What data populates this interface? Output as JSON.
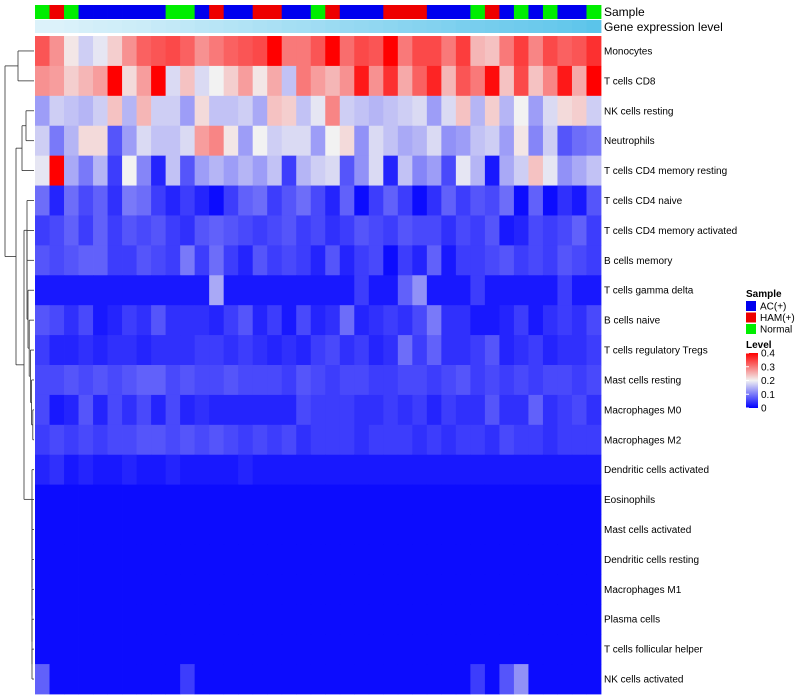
{
  "chart_data": {
    "type": "heatmap",
    "title": "",
    "annotation_titles": [
      "Sample",
      "Gene expression level"
    ],
    "columns": 39,
    "sample_groups": [
      "Normal",
      "HAM(+)",
      "Normal",
      "AC(+)",
      "AC(+)",
      "AC(+)",
      "AC(+)",
      "AC(+)",
      "AC(+)",
      "Normal",
      "Normal",
      "AC(+)",
      "HAM(+)",
      "AC(+)",
      "AC(+)",
      "HAM(+)",
      "HAM(+)",
      "AC(+)",
      "AC(+)",
      "Normal",
      "HAM(+)",
      "AC(+)",
      "AC(+)",
      "AC(+)",
      "HAM(+)",
      "HAM(+)",
      "HAM(+)",
      "AC(+)",
      "AC(+)",
      "AC(+)",
      "Normal",
      "HAM(+)",
      "AC(+)",
      "Normal",
      "AC(+)",
      "Normal",
      "AC(+)",
      "AC(+)",
      "Normal"
    ],
    "gene_expression_level": [
      0.1,
      0.1,
      0.12,
      0.15,
      0.17,
      0.18,
      0.2,
      0.22,
      0.25,
      0.27,
      0.3,
      0.33,
      0.35,
      0.38,
      0.4,
      0.43,
      0.45,
      0.48,
      0.5,
      0.52,
      0.55,
      0.58,
      0.6,
      0.62,
      0.65,
      0.68,
      0.7,
      0.72,
      0.75,
      0.78,
      0.8,
      0.82,
      0.84,
      0.86,
      0.88,
      0.9,
      0.93,
      0.96,
      1.0
    ],
    "rows": [
      {
        "name": "Monocytes",
        "values": [
          0.33,
          0.28,
          0.21,
          0.17,
          0.19,
          0.23,
          0.28,
          0.32,
          0.33,
          0.34,
          0.32,
          0.28,
          0.3,
          0.32,
          0.33,
          0.34,
          0.41,
          0.3,
          0.3,
          0.33,
          0.4,
          0.31,
          0.34,
          0.33,
          0.4,
          0.3,
          0.34,
          0.34,
          0.3,
          0.35,
          0.25,
          0.24,
          0.3,
          0.35,
          0.29,
          0.34,
          0.32,
          0.33,
          0.36
        ]
      },
      {
        "name": "T cells CD8",
        "values": [
          0.28,
          0.27,
          0.23,
          0.25,
          0.27,
          0.4,
          0.22,
          0.27,
          0.4,
          0.18,
          0.24,
          0.18,
          0.2,
          0.23,
          0.27,
          0.21,
          0.26,
          0.16,
          0.3,
          0.27,
          0.25,
          0.28,
          0.38,
          0.28,
          0.36,
          0.26,
          0.32,
          0.37,
          0.25,
          0.33,
          0.3,
          0.39,
          0.24,
          0.34,
          0.24,
          0.29,
          0.38,
          0.26,
          0.4
        ]
      },
      {
        "name": "NK cells resting",
        "values": [
          0.13,
          0.17,
          0.16,
          0.15,
          0.17,
          0.24,
          0.15,
          0.25,
          0.17,
          0.17,
          0.13,
          0.22,
          0.16,
          0.16,
          0.17,
          0.14,
          0.24,
          0.23,
          0.16,
          0.19,
          0.29,
          0.17,
          0.16,
          0.15,
          0.16,
          0.17,
          0.18,
          0.13,
          0.18,
          0.24,
          0.15,
          0.23,
          0.15,
          0.2,
          0.13,
          0.18,
          0.22,
          0.23,
          0.17
        ]
      },
      {
        "name": "Neutrophils",
        "values": [
          0.17,
          0.1,
          0.15,
          0.22,
          0.22,
          0.07,
          0.13,
          0.18,
          0.16,
          0.16,
          0.18,
          0.27,
          0.29,
          0.21,
          0.13,
          0.2,
          0.17,
          0.18,
          0.18,
          0.13,
          0.2,
          0.22,
          0.12,
          0.18,
          0.16,
          0.14,
          0.15,
          0.18,
          0.12,
          0.13,
          0.16,
          0.17,
          0.13,
          0.21,
          0.11,
          0.17,
          0.07,
          0.09,
          0.1
        ]
      },
      {
        "name": "T cells CD4 memory resting",
        "values": [
          0.19,
          0.4,
          0.14,
          0.1,
          0.15,
          0.05,
          0.2,
          0.11,
          0.03,
          0.16,
          0.07,
          0.13,
          0.15,
          0.13,
          0.15,
          0.13,
          0.16,
          0.05,
          0.15,
          0.17,
          0.18,
          0.07,
          0.12,
          0.18,
          0.03,
          0.16,
          0.11,
          0.13,
          0.06,
          0.19,
          0.15,
          0.02,
          0.14,
          0.17,
          0.24,
          0.19,
          0.12,
          0.14,
          0.16
        ]
      },
      {
        "name": "T cells CD4 naive",
        "values": [
          0.09,
          0.03,
          0.09,
          0.06,
          0.08,
          0.04,
          0.1,
          0.09,
          0.05,
          0.03,
          0.05,
          0.03,
          0.01,
          0.05,
          0.08,
          0.09,
          0.05,
          0.07,
          0.09,
          0.06,
          0.03,
          0.08,
          0.01,
          0.05,
          0.08,
          0.05,
          0.01,
          0.04,
          0.08,
          0.05,
          0.07,
          0.06,
          0.09,
          0.01,
          0.08,
          0.01,
          0.04,
          0.02,
          0.07
        ]
      },
      {
        "name": "T cells CD4 memory activated",
        "values": [
          0.05,
          0.06,
          0.08,
          0.05,
          0.08,
          0.05,
          0.07,
          0.06,
          0.07,
          0.05,
          0.04,
          0.07,
          0.08,
          0.07,
          0.06,
          0.05,
          0.06,
          0.07,
          0.05,
          0.06,
          0.04,
          0.05,
          0.07,
          0.06,
          0.05,
          0.07,
          0.06,
          0.06,
          0.04,
          0.06,
          0.05,
          0.07,
          0.02,
          0.03,
          0.06,
          0.05,
          0.06,
          0.08,
          0.05
        ]
      },
      {
        "name": "B cells memory",
        "values": [
          0.07,
          0.06,
          0.07,
          0.08,
          0.08,
          0.05,
          0.05,
          0.07,
          0.06,
          0.05,
          0.1,
          0.05,
          0.09,
          0.05,
          0.03,
          0.07,
          0.05,
          0.06,
          0.05,
          0.03,
          0.07,
          0.03,
          0.05,
          0.06,
          0.01,
          0.05,
          0.03,
          0.08,
          0.02,
          0.05,
          0.05,
          0.06,
          0.07,
          0.05,
          0.06,
          0.05,
          0.07,
          0.06,
          0.05
        ]
      },
      {
        "name": "T cells gamma delta",
        "values": [
          0.02,
          0.02,
          0.02,
          0.02,
          0.02,
          0.02,
          0.02,
          0.02,
          0.02,
          0.02,
          0.02,
          0.02,
          0.14,
          0.02,
          0.02,
          0.02,
          0.02,
          0.02,
          0.02,
          0.02,
          0.02,
          0.02,
          0.05,
          0.02,
          0.02,
          0.08,
          0.12,
          0.02,
          0.02,
          0.02,
          0.05,
          0.02,
          0.02,
          0.02,
          0.02,
          0.02,
          0.05,
          0.02,
          0.02
        ]
      },
      {
        "name": "B cells naive",
        "values": [
          0.07,
          0.06,
          0.04,
          0.06,
          0.02,
          0.03,
          0.05,
          0.04,
          0.07,
          0.04,
          0.04,
          0.04,
          0.03,
          0.05,
          0.07,
          0.03,
          0.05,
          0.02,
          0.06,
          0.03,
          0.04,
          0.09,
          0.03,
          0.04,
          0.05,
          0.04,
          0.06,
          0.1,
          0.04,
          0.04,
          0.02,
          0.02,
          0.03,
          0.05,
          0.02,
          0.04,
          0.05,
          0.04,
          0.06
        ]
      },
      {
        "name": "T cells regulatory  Tregs",
        "values": [
          0.05,
          0.03,
          0.03,
          0.04,
          0.03,
          0.04,
          0.04,
          0.03,
          0.04,
          0.04,
          0.04,
          0.05,
          0.05,
          0.04,
          0.05,
          0.04,
          0.03,
          0.04,
          0.03,
          0.05,
          0.06,
          0.04,
          0.05,
          0.03,
          0.04,
          0.09,
          0.05,
          0.08,
          0.04,
          0.04,
          0.05,
          0.07,
          0.03,
          0.04,
          0.05,
          0.03,
          0.04,
          0.04,
          0.05
        ]
      },
      {
        "name": "Mast cells resting",
        "values": [
          0.06,
          0.06,
          0.07,
          0.06,
          0.07,
          0.06,
          0.07,
          0.08,
          0.08,
          0.06,
          0.07,
          0.06,
          0.06,
          0.07,
          0.06,
          0.06,
          0.06,
          0.05,
          0.07,
          0.06,
          0.05,
          0.06,
          0.06,
          0.05,
          0.05,
          0.06,
          0.06,
          0.05,
          0.06,
          0.07,
          0.05,
          0.06,
          0.05,
          0.06,
          0.05,
          0.06,
          0.06,
          0.05,
          0.06
        ]
      },
      {
        "name": "Macrophages M0",
        "values": [
          0.06,
          0.02,
          0.03,
          0.07,
          0.03,
          0.06,
          0.04,
          0.06,
          0.03,
          0.06,
          0.03,
          0.04,
          0.03,
          0.03,
          0.03,
          0.03,
          0.03,
          0.03,
          0.06,
          0.05,
          0.05,
          0.05,
          0.04,
          0.04,
          0.05,
          0.04,
          0.05,
          0.03,
          0.05,
          0.04,
          0.04,
          0.07,
          0.04,
          0.04,
          0.08,
          0.04,
          0.05,
          0.06,
          0.04
        ]
      },
      {
        "name": "Macrophages M2",
        "values": [
          0.05,
          0.06,
          0.05,
          0.06,
          0.05,
          0.06,
          0.06,
          0.07,
          0.07,
          0.06,
          0.07,
          0.06,
          0.07,
          0.06,
          0.05,
          0.06,
          0.05,
          0.06,
          0.04,
          0.05,
          0.05,
          0.05,
          0.04,
          0.05,
          0.05,
          0.05,
          0.04,
          0.05,
          0.04,
          0.05,
          0.05,
          0.04,
          0.06,
          0.05,
          0.05,
          0.04,
          0.05,
          0.05,
          0.05
        ]
      },
      {
        "name": "Dendritic cells activated",
        "values": [
          0.03,
          0.04,
          0.02,
          0.03,
          0.02,
          0.02,
          0.03,
          0.02,
          0.02,
          0.03,
          0.02,
          0.02,
          0.02,
          0.02,
          0.03,
          0.02,
          0.02,
          0.02,
          0.02,
          0.02,
          0.02,
          0.02,
          0.02,
          0.02,
          0.02,
          0.02,
          0.02,
          0.02,
          0.02,
          0.02,
          0.02,
          0.02,
          0.02,
          0.02,
          0.02,
          0.02,
          0.02,
          0.02,
          0.02
        ]
      },
      {
        "name": "Eosinophils",
        "values": [
          0.01,
          0.01,
          0.01,
          0.01,
          0.01,
          0.01,
          0.01,
          0.01,
          0.01,
          0.01,
          0.01,
          0.01,
          0.01,
          0.01,
          0.01,
          0.01,
          0.01,
          0.01,
          0.01,
          0.01,
          0.01,
          0.01,
          0.01,
          0.01,
          0.01,
          0.01,
          0.01,
          0.01,
          0.01,
          0.01,
          0.01,
          0.01,
          0.01,
          0.01,
          0.01,
          0.01,
          0.01,
          0.01,
          0.01
        ]
      },
      {
        "name": "Mast cells activated",
        "values": [
          0.01,
          0.01,
          0.01,
          0.01,
          0.01,
          0.01,
          0.01,
          0.01,
          0.01,
          0.01,
          0.01,
          0.01,
          0.01,
          0.01,
          0.01,
          0.01,
          0.01,
          0.01,
          0.01,
          0.01,
          0.01,
          0.01,
          0.01,
          0.01,
          0.01,
          0.01,
          0.01,
          0.01,
          0.01,
          0.01,
          0.01,
          0.01,
          0.01,
          0.01,
          0.01,
          0.01,
          0.01,
          0.01,
          0.01
        ]
      },
      {
        "name": "Dendritic cells resting",
        "values": [
          0.01,
          0.01,
          0.01,
          0.01,
          0.01,
          0.01,
          0.01,
          0.01,
          0.01,
          0.01,
          0.01,
          0.01,
          0.01,
          0.01,
          0.01,
          0.01,
          0.01,
          0.01,
          0.01,
          0.01,
          0.01,
          0.01,
          0.01,
          0.01,
          0.01,
          0.01,
          0.01,
          0.01,
          0.01,
          0.01,
          0.01,
          0.01,
          0.01,
          0.01,
          0.01,
          0.01,
          0.01,
          0.01,
          0.01
        ]
      },
      {
        "name": "Macrophages M1",
        "values": [
          0.01,
          0.01,
          0.01,
          0.01,
          0.01,
          0.01,
          0.01,
          0.01,
          0.01,
          0.01,
          0.01,
          0.01,
          0.01,
          0.01,
          0.01,
          0.01,
          0.01,
          0.01,
          0.01,
          0.01,
          0.01,
          0.01,
          0.01,
          0.01,
          0.01,
          0.01,
          0.01,
          0.01,
          0.01,
          0.01,
          0.01,
          0.01,
          0.01,
          0.01,
          0.01,
          0.01,
          0.01,
          0.01,
          0.01
        ]
      },
      {
        "name": "Plasma cells",
        "values": [
          0.01,
          0.01,
          0.01,
          0.01,
          0.01,
          0.01,
          0.01,
          0.01,
          0.01,
          0.01,
          0.01,
          0.01,
          0.01,
          0.01,
          0.01,
          0.01,
          0.01,
          0.01,
          0.01,
          0.01,
          0.01,
          0.01,
          0.01,
          0.01,
          0.01,
          0.01,
          0.01,
          0.01,
          0.01,
          0.01,
          0.01,
          0.01,
          0.01,
          0.01,
          0.01,
          0.01,
          0.01,
          0.01,
          0.01
        ]
      },
      {
        "name": "T cells follicular helper",
        "values": [
          0.01,
          0.01,
          0.01,
          0.01,
          0.01,
          0.01,
          0.01,
          0.01,
          0.01,
          0.01,
          0.01,
          0.01,
          0.01,
          0.01,
          0.01,
          0.01,
          0.01,
          0.01,
          0.01,
          0.01,
          0.01,
          0.01,
          0.01,
          0.01,
          0.01,
          0.01,
          0.01,
          0.01,
          0.01,
          0.01,
          0.01,
          0.01,
          0.01,
          0.01,
          0.01,
          0.01,
          0.01,
          0.01,
          0.01
        ]
      },
      {
        "name": "NK cells activated",
        "values": [
          0.08,
          0.01,
          0.01,
          0.01,
          0.01,
          0.01,
          0.01,
          0.01,
          0.01,
          0.01,
          0.05,
          0.01,
          0.01,
          0.01,
          0.01,
          0.01,
          0.01,
          0.01,
          0.01,
          0.01,
          0.01,
          0.01,
          0.01,
          0.01,
          0.01,
          0.01,
          0.01,
          0.01,
          0.01,
          0.01,
          0.05,
          0.01,
          0.07,
          0.12,
          0.01,
          0.01,
          0.01,
          0.01,
          0.01
        ]
      }
    ],
    "color_scale": {
      "min": 0,
      "max": 0.4,
      "low": "#0000ff",
      "mid": "#f2f2f2",
      "high": "#ff0000"
    },
    "legend": {
      "sample_title": "Sample",
      "sample_items": [
        {
          "label": "AC(+)",
          "color": "#0000ee"
        },
        {
          "label": "HAM(+)",
          "color": "#ee0000"
        },
        {
          "label": "Normal",
          "color": "#00ee00"
        }
      ],
      "level_title": "Level",
      "level_ticks": [
        "0.4",
        "0.3",
        "0.2",
        "0.1",
        "0"
      ],
      "placement": "right"
    },
    "dendrogram": "rows",
    "expression_gradient": {
      "low": "#eaf7fc",
      "high": "#5bc4ea"
    }
  }
}
